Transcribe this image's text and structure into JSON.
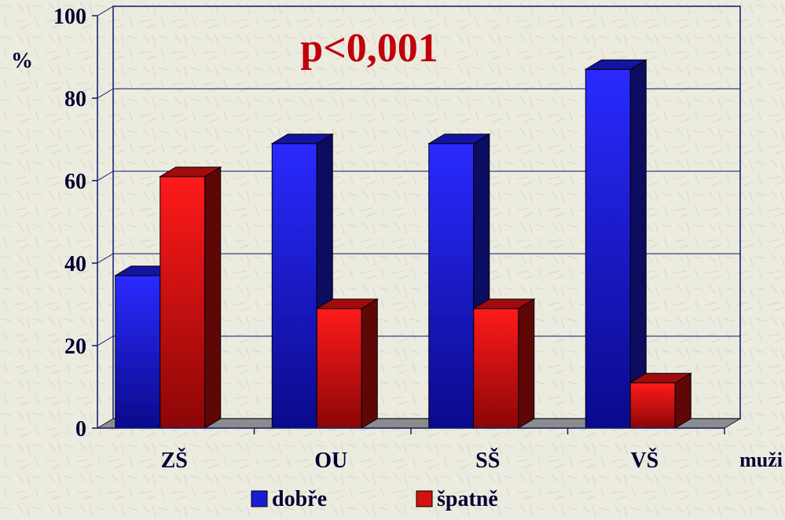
{
  "chart_data": {
    "type": "bar",
    "categories": [
      "ZŠ",
      "OU",
      "SŠ",
      "VŠ"
    ],
    "series": [
      {
        "name": "dobře",
        "color": "#1b1bd6",
        "values": [
          37,
          69,
          69,
          87
        ]
      },
      {
        "name": "špatně",
        "color": "#d41010",
        "values": [
          61,
          29,
          29,
          11
        ]
      }
    ],
    "ylim": [
      0,
      100
    ],
    "yticks": [
      0,
      20,
      40,
      60,
      80,
      100
    ],
    "ylabel": "%",
    "xlabel": "muži",
    "annotation": "p<0,001",
    "annotation_color": "#c0000a",
    "grid": true,
    "legend_position": "bottom-center",
    "style": "3d"
  }
}
